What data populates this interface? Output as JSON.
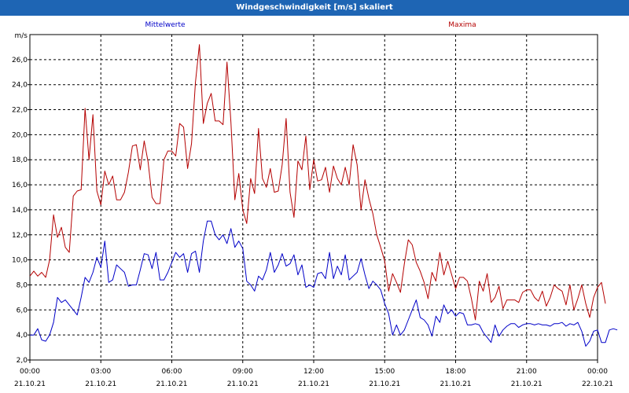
{
  "window": {
    "title": "Windgeschwindigkeit [m/s] skaliert"
  },
  "colors": {
    "titlebar": "#1e65b4",
    "series_mean": "#0000c8",
    "series_max": "#b40000",
    "grid": "#000000"
  },
  "chart_data": {
    "type": "line",
    "ylabel": "m/s",
    "ylim": [
      2.0,
      28.0
    ],
    "yticks": [
      2.0,
      4.0,
      6.0,
      8.0,
      10.0,
      12.0,
      14.0,
      16.0,
      18.0,
      20.0,
      22.0,
      24.0,
      26.0
    ],
    "ytick_labels": [
      "2,0",
      "4,0",
      "6,0",
      "8,0",
      "10,0",
      "12,0",
      "14,0",
      "16,0",
      "18,0",
      "20,0",
      "22,0",
      "24,0",
      "26,0"
    ],
    "x_range": [
      "2021-10-21 00:00",
      "2021-10-22 00:00"
    ],
    "xtick_labels": [
      {
        "time": "00:00",
        "date": "21.10.21"
      },
      {
        "time": "03:00",
        "date": "21.10.21"
      },
      {
        "time": "06:00",
        "date": "21.10.21"
      },
      {
        "time": "09:00",
        "date": "21.10.21"
      },
      {
        "time": "12:00",
        "date": "21.10.21"
      },
      {
        "time": "15:00",
        "date": "21.10.21"
      },
      {
        "time": "18:00",
        "date": "21.10.21"
      },
      {
        "time": "21:00",
        "date": "21.10.21"
      },
      {
        "time": "00:00",
        "date": "22.10.21"
      }
    ],
    "grid": true,
    "x_interval_minutes": 10,
    "series": [
      {
        "name": "Mittelwerte",
        "color": "#0000c8",
        "legend_position": "top-left",
        "values": [
          4.0,
          4.0,
          4.5,
          3.6,
          3.5,
          4.0,
          5.0,
          7.0,
          6.6,
          6.8,
          6.4,
          6.0,
          5.6,
          7.0,
          8.6,
          8.2,
          9.0,
          10.2,
          9.4,
          11.5,
          8.2,
          8.4,
          9.6,
          9.3,
          9.0,
          7.9,
          8.0,
          8.0,
          9.2,
          10.5,
          10.4,
          9.3,
          10.6,
          8.4,
          8.4,
          9.0,
          9.8,
          10.6,
          10.2,
          10.5,
          9.0,
          10.5,
          10.7,
          9.0,
          11.5,
          13.1,
          13.1,
          12.0,
          11.6,
          12.0,
          11.3,
          12.5,
          11.0,
          11.5,
          10.9,
          8.3,
          8.0,
          7.5,
          8.7,
          8.4,
          9.2,
          10.6,
          9.0,
          9.6,
          10.5,
          9.5,
          9.7,
          10.4,
          8.8,
          9.6,
          7.8,
          8.0,
          7.8,
          8.9,
          9.0,
          8.5,
          10.6,
          8.5,
          9.5,
          8.8,
          10.4,
          8.4,
          8.7,
          9.0,
          10.1,
          8.8,
          7.7,
          8.3,
          8.0,
          7.6,
          6.5,
          5.7,
          4.0,
          4.8,
          4.0,
          4.4,
          5.2,
          6.0,
          6.8,
          5.4,
          5.2,
          4.8,
          3.9,
          5.5,
          5.0,
          6.4,
          5.7,
          6.0,
          5.5,
          5.8,
          5.7,
          4.8,
          4.8,
          4.9,
          4.8,
          4.2,
          3.8,
          3.4,
          4.8,
          3.9,
          4.4,
          4.7,
          4.9,
          4.9,
          4.6,
          4.8,
          4.9,
          4.9,
          4.8,
          4.9,
          4.8,
          4.8,
          4.7,
          4.9,
          4.9,
          5.0,
          4.7,
          4.9,
          4.8,
          5.0,
          4.3,
          3.1,
          3.5,
          4.3,
          4.4,
          3.4,
          3.4,
          4.4,
          4.5,
          4.4
        ]
      },
      {
        "name": "Maxima",
        "color": "#b40000",
        "legend_position": "top-right",
        "values": [
          8.7,
          9.1,
          8.7,
          9.0,
          8.6,
          10.0,
          13.6,
          11.8,
          12.6,
          11.0,
          10.6,
          15.1,
          15.5,
          15.6,
          22.1,
          18.0,
          21.6,
          15.5,
          14.4,
          17.1,
          16.0,
          16.7,
          14.8,
          14.8,
          15.4,
          17.0,
          19.1,
          19.2,
          17.2,
          19.5,
          17.8,
          15.0,
          14.5,
          14.5,
          18.0,
          18.7,
          18.7,
          18.3,
          20.9,
          20.6,
          17.3,
          19.3,
          24.2,
          27.2,
          20.9,
          22.5,
          23.3,
          21.1,
          21.1,
          20.8,
          25.8,
          21.0,
          14.8,
          16.9,
          14.0,
          12.9,
          16.5,
          15.3,
          20.5,
          16.5,
          15.8,
          17.3,
          15.4,
          15.5,
          17.6,
          21.3,
          15.4,
          13.4,
          17.9,
          17.2,
          19.9,
          15.6,
          18.0,
          16.3,
          16.4,
          17.4,
          15.4,
          17.5,
          16.5,
          16.0,
          17.4,
          16.0,
          19.2,
          17.6,
          14.0,
          16.4,
          14.9,
          13.7,
          12.0,
          11.0,
          9.9,
          7.5,
          8.9,
          8.2,
          7.4,
          9.7,
          11.6,
          11.2,
          9.8,
          9.1,
          8.2,
          6.9,
          9.0,
          8.3,
          10.6,
          8.8,
          9.9,
          8.8,
          7.7,
          8.6,
          8.6,
          8.3,
          6.9,
          5.2,
          8.3,
          7.5,
          8.9,
          6.6,
          7.0,
          7.9,
          6.1,
          6.8,
          6.8,
          6.8,
          6.6,
          7.4,
          7.6,
          7.6,
          7.0,
          6.7,
          7.5,
          6.3,
          7.0,
          8.0,
          7.7,
          7.5,
          6.4,
          8.0,
          6.0,
          6.9,
          8.0,
          6.5,
          5.4,
          7.0,
          7.8,
          8.2,
          6.5
        ]
      }
    ]
  }
}
